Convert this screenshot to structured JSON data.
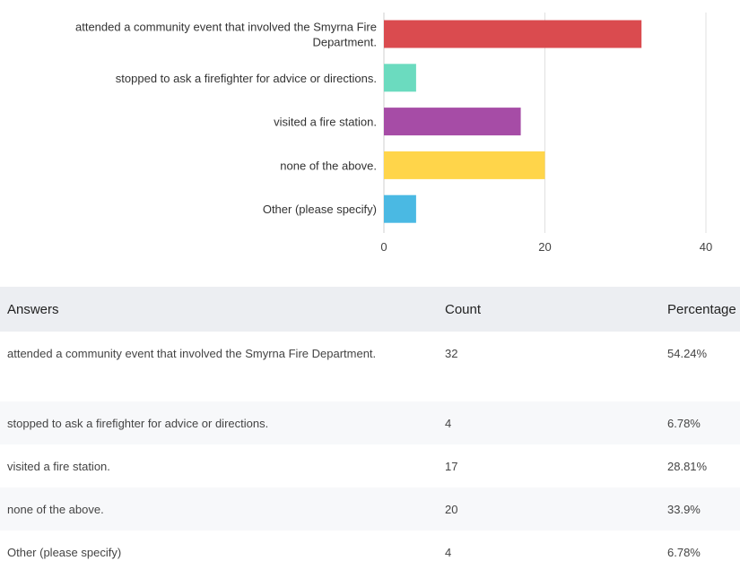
{
  "chart_data": {
    "type": "bar",
    "orientation": "horizontal",
    "categories": [
      [
        "attended a community event that involved the Smyrna Fire",
        "Department."
      ],
      [
        "stopped to ask a firefighter for advice or directions."
      ],
      [
        "visited a fire station."
      ],
      [
        "none of the above."
      ],
      [
        "Other (please specify)"
      ]
    ],
    "values": [
      32,
      4,
      17,
      20,
      4
    ],
    "colors": [
      "#da4b4f",
      "#6bdbbf",
      "#a64ca6",
      "#ffd54a",
      "#4ab9e3"
    ],
    "xlim": [
      0,
      40
    ],
    "xticks": [
      0,
      20,
      40
    ],
    "title": "",
    "xlabel": "",
    "ylabel": ""
  },
  "table": {
    "headers": {
      "answers": "Answers",
      "count": "Count",
      "percentage": "Percentage"
    },
    "rows": [
      {
        "answer": "attended a community event that involved the Smyrna Fire Department.",
        "count": "32",
        "percentage": "54.24%"
      },
      {
        "answer": "stopped to ask a firefighter for advice or directions.",
        "count": "4",
        "percentage": "6.78%"
      },
      {
        "answer": "visited a fire station.",
        "count": "17",
        "percentage": "28.81%"
      },
      {
        "answer": "none of the above.",
        "count": "20",
        "percentage": "33.9%"
      },
      {
        "answer": "Other (please specify)",
        "count": "4",
        "percentage": "6.78%"
      }
    ]
  }
}
